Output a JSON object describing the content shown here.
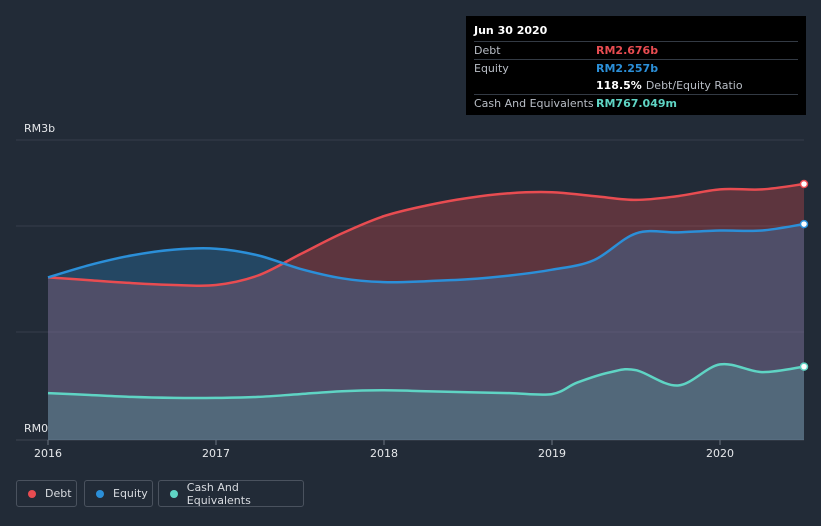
{
  "chart_data": {
    "type": "area",
    "ylabel_top": "RM3b",
    "ylabel_bottom": "RM0",
    "ylim": [
      0,
      3.0
    ],
    "x_ticks": [
      "2016",
      "2017",
      "2018",
      "2019",
      "2020"
    ],
    "xlim": [
      2016.0,
      2020.5
    ],
    "series": [
      {
        "name": "Debt",
        "color": "#e84c51",
        "x": [
          2016.0,
          2016.25,
          2016.5,
          2016.75,
          2017.0,
          2017.25,
          2017.5,
          2017.75,
          2018.0,
          2018.25,
          2018.5,
          2018.75,
          2019.0,
          2019.25,
          2019.5,
          2019.75,
          2020.0,
          2020.25,
          2020.5
        ],
        "values": [
          1.7,
          1.67,
          1.64,
          1.62,
          1.62,
          1.72,
          1.94,
          2.16,
          2.34,
          2.45,
          2.53,
          2.58,
          2.59,
          2.55,
          2.51,
          2.55,
          2.62,
          2.62,
          2.676
        ]
      },
      {
        "name": "Equity",
        "color": "#2b8fd8",
        "x": [
          2016.0,
          2016.25,
          2016.5,
          2016.75,
          2017.0,
          2017.25,
          2017.5,
          2017.75,
          2018.0,
          2018.25,
          2018.5,
          2018.75,
          2019.0,
          2019.25,
          2019.5,
          2019.75,
          2020.0,
          2020.25,
          2020.5
        ],
        "values": [
          1.7,
          1.83,
          1.93,
          1.99,
          2.0,
          1.93,
          1.79,
          1.69,
          1.65,
          1.66,
          1.68,
          1.72,
          1.78,
          1.88,
          2.16,
          2.17,
          2.19,
          2.19,
          2.257
        ]
      },
      {
        "name": "Cash And Equivalents",
        "color": "#5fd4c4",
        "x": [
          2016.0,
          2016.25,
          2016.5,
          2016.75,
          2017.0,
          2017.25,
          2017.5,
          2017.75,
          2018.0,
          2018.25,
          2018.5,
          2018.75,
          2019.0,
          2019.15,
          2019.35,
          2019.5,
          2019.75,
          2020.0,
          2020.25,
          2020.5
        ],
        "values": [
          0.49,
          0.47,
          0.45,
          0.44,
          0.44,
          0.45,
          0.48,
          0.51,
          0.52,
          0.51,
          0.5,
          0.49,
          0.48,
          0.6,
          0.71,
          0.73,
          0.57,
          0.79,
          0.71,
          0.767
        ]
      }
    ]
  },
  "tooltip": {
    "date": "Jun 30 2020",
    "debt_label": "Debt",
    "debt_value": "RM2.676b",
    "equity_label": "Equity",
    "equity_value": "RM2.257b",
    "ratio_value": "118.5%",
    "ratio_label": "Debt/Equity Ratio",
    "cash_label": "Cash And Equivalents",
    "cash_value": "RM767.049m"
  },
  "legend": {
    "debt": "Debt",
    "equity": "Equity",
    "cash": "Cash And Equivalents"
  }
}
